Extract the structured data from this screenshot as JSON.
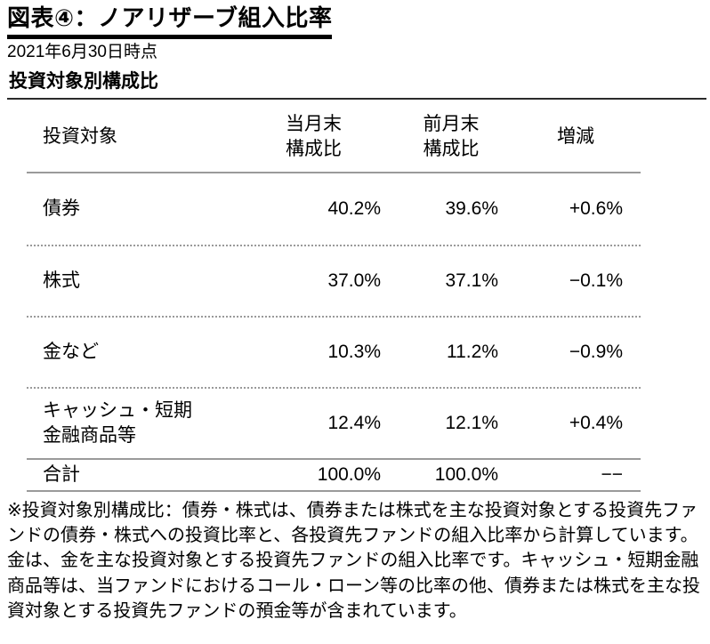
{
  "header": {
    "title": "図表④：ノアリザーブ組入比率",
    "date": "2021年6月30日時点",
    "section_title": "投資対象別構成比"
  },
  "table": {
    "columns": [
      "投資対象",
      "当月末\n構成比",
      "前月末\n構成比",
      "増減"
    ],
    "rows": [
      {
        "label": "債券",
        "current": "40.2%",
        "previous": "39.6%",
        "change": "+0.6%"
      },
      {
        "label": "株式",
        "current": "37.0%",
        "previous": "37.1%",
        "change": "−0.1%"
      },
      {
        "label": "金など",
        "current": "10.3%",
        "previous": "11.2%",
        "change": "−0.9%"
      },
      {
        "label": "キャッシュ・短期\n金融商品等",
        "current": "12.4%",
        "previous": "12.1%",
        "change": "+0.4%"
      }
    ],
    "total": {
      "label": "合計",
      "current": "100.0%",
      "previous": "100.0%",
      "change": "−−"
    }
  },
  "footnote": "※投資対象別構成比：債券・株式は、債券または株式を主な投資対象とする投資先ファンドの債券・株式への投資比率と、各投資先ファンドの組入比率から計算しています。金は、金を主な投資対象とする投資先ファンドの組入比率です。キャッシュ・短期金融商品等は、当ファンドにおけるコール・ローン等の比率の他、債券または株式を主な投資対象とする投資先ファンドの預金等が含まれています。"
}
